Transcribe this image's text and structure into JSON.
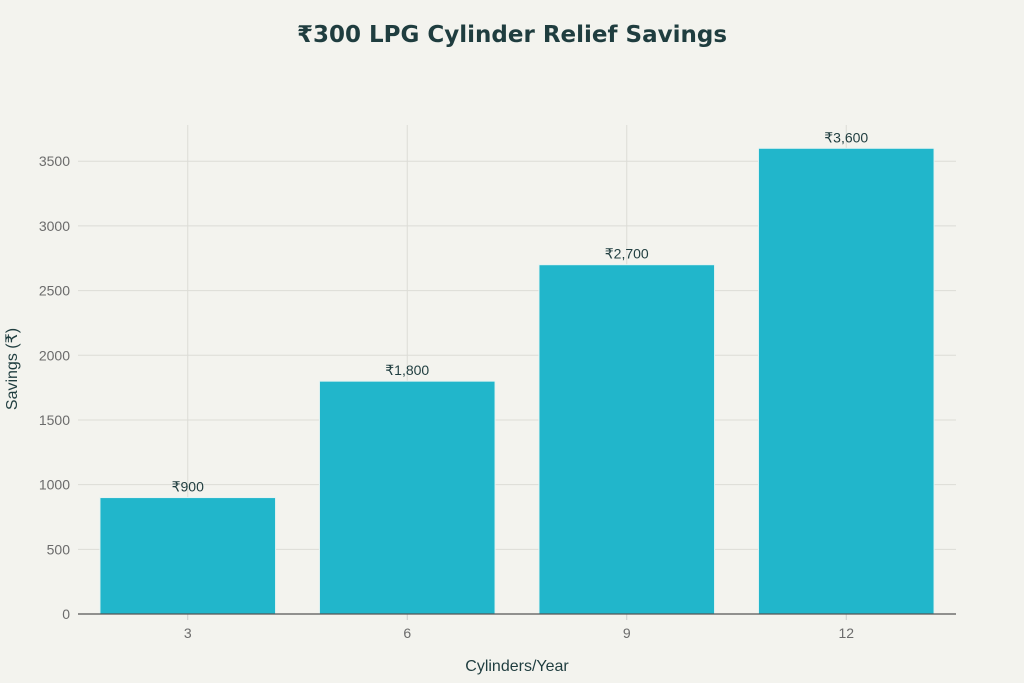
{
  "chart_data": {
    "type": "bar",
    "title": "₹300 LPG Cylinder Relief Savings",
    "xlabel": "Cylinders/Year",
    "ylabel": "Savings (₹)",
    "categories": [
      "3",
      "6",
      "9",
      "12"
    ],
    "values": [
      900,
      1800,
      2700,
      3600
    ],
    "data_labels": [
      "₹900",
      "₹1,800",
      "₹2,700",
      "₹3,600"
    ],
    "yticks": [
      0,
      500,
      1000,
      1500,
      2000,
      2500,
      3000,
      3500
    ],
    "ylim": [
      0,
      3780
    ],
    "grid": true,
    "colors": {
      "bar": "#21b6cb",
      "background": "#f3f3ee",
      "title": "#1f3d3f"
    }
  }
}
